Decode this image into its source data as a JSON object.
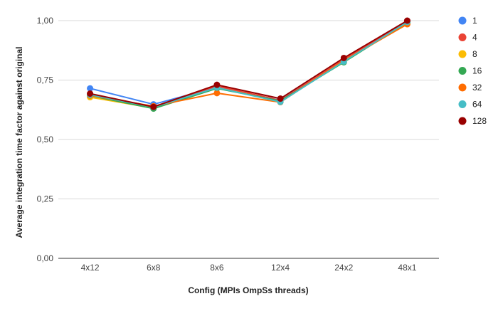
{
  "chart_data": {
    "type": "line",
    "title": "",
    "xlabel": "Config (MPIs  OmpSs threads)",
    "ylabel": "Average integration time factor against original",
    "categories": [
      "4x12",
      "6x8",
      "8x6",
      "12x4",
      "24x2",
      "48x1"
    ],
    "ylim": [
      0,
      1
    ],
    "yticks": [
      0,
      0.25,
      0.5,
      0.75,
      1
    ],
    "ytick_labels": [
      "0,00",
      "0,25",
      "0,50",
      "0,75",
      "1,00"
    ],
    "grid": true,
    "legend_position": "right",
    "series": [
      {
        "name": "1",
        "color": "#4285f4",
        "values": [
          0.715,
          0.648,
          0.72,
          0.665,
          0.835,
          0.995
        ]
      },
      {
        "name": "4",
        "color": "#ea4335",
        "values": [
          0.688,
          0.638,
          0.725,
          0.664,
          0.836,
          0.995
        ]
      },
      {
        "name": "8",
        "color": "#fbbc04",
        "values": [
          0.678,
          0.632,
          0.718,
          0.66,
          0.83,
          0.99
        ]
      },
      {
        "name": "16",
        "color": "#34a853",
        "values": [
          0.685,
          0.63,
          0.715,
          0.662,
          0.825,
          0.993
        ]
      },
      {
        "name": "32",
        "color": "#ff6d01",
        "values": [
          0.685,
          0.64,
          0.695,
          0.657,
          0.832,
          0.985
        ]
      },
      {
        "name": "64",
        "color": "#46bdc6",
        "values": [
          0.688,
          0.636,
          0.718,
          0.658,
          0.828,
          0.994
        ]
      },
      {
        "name": "128",
        "color": "#990000",
        "values": [
          0.693,
          0.637,
          0.73,
          0.672,
          0.843,
          1.0
        ]
      }
    ]
  }
}
